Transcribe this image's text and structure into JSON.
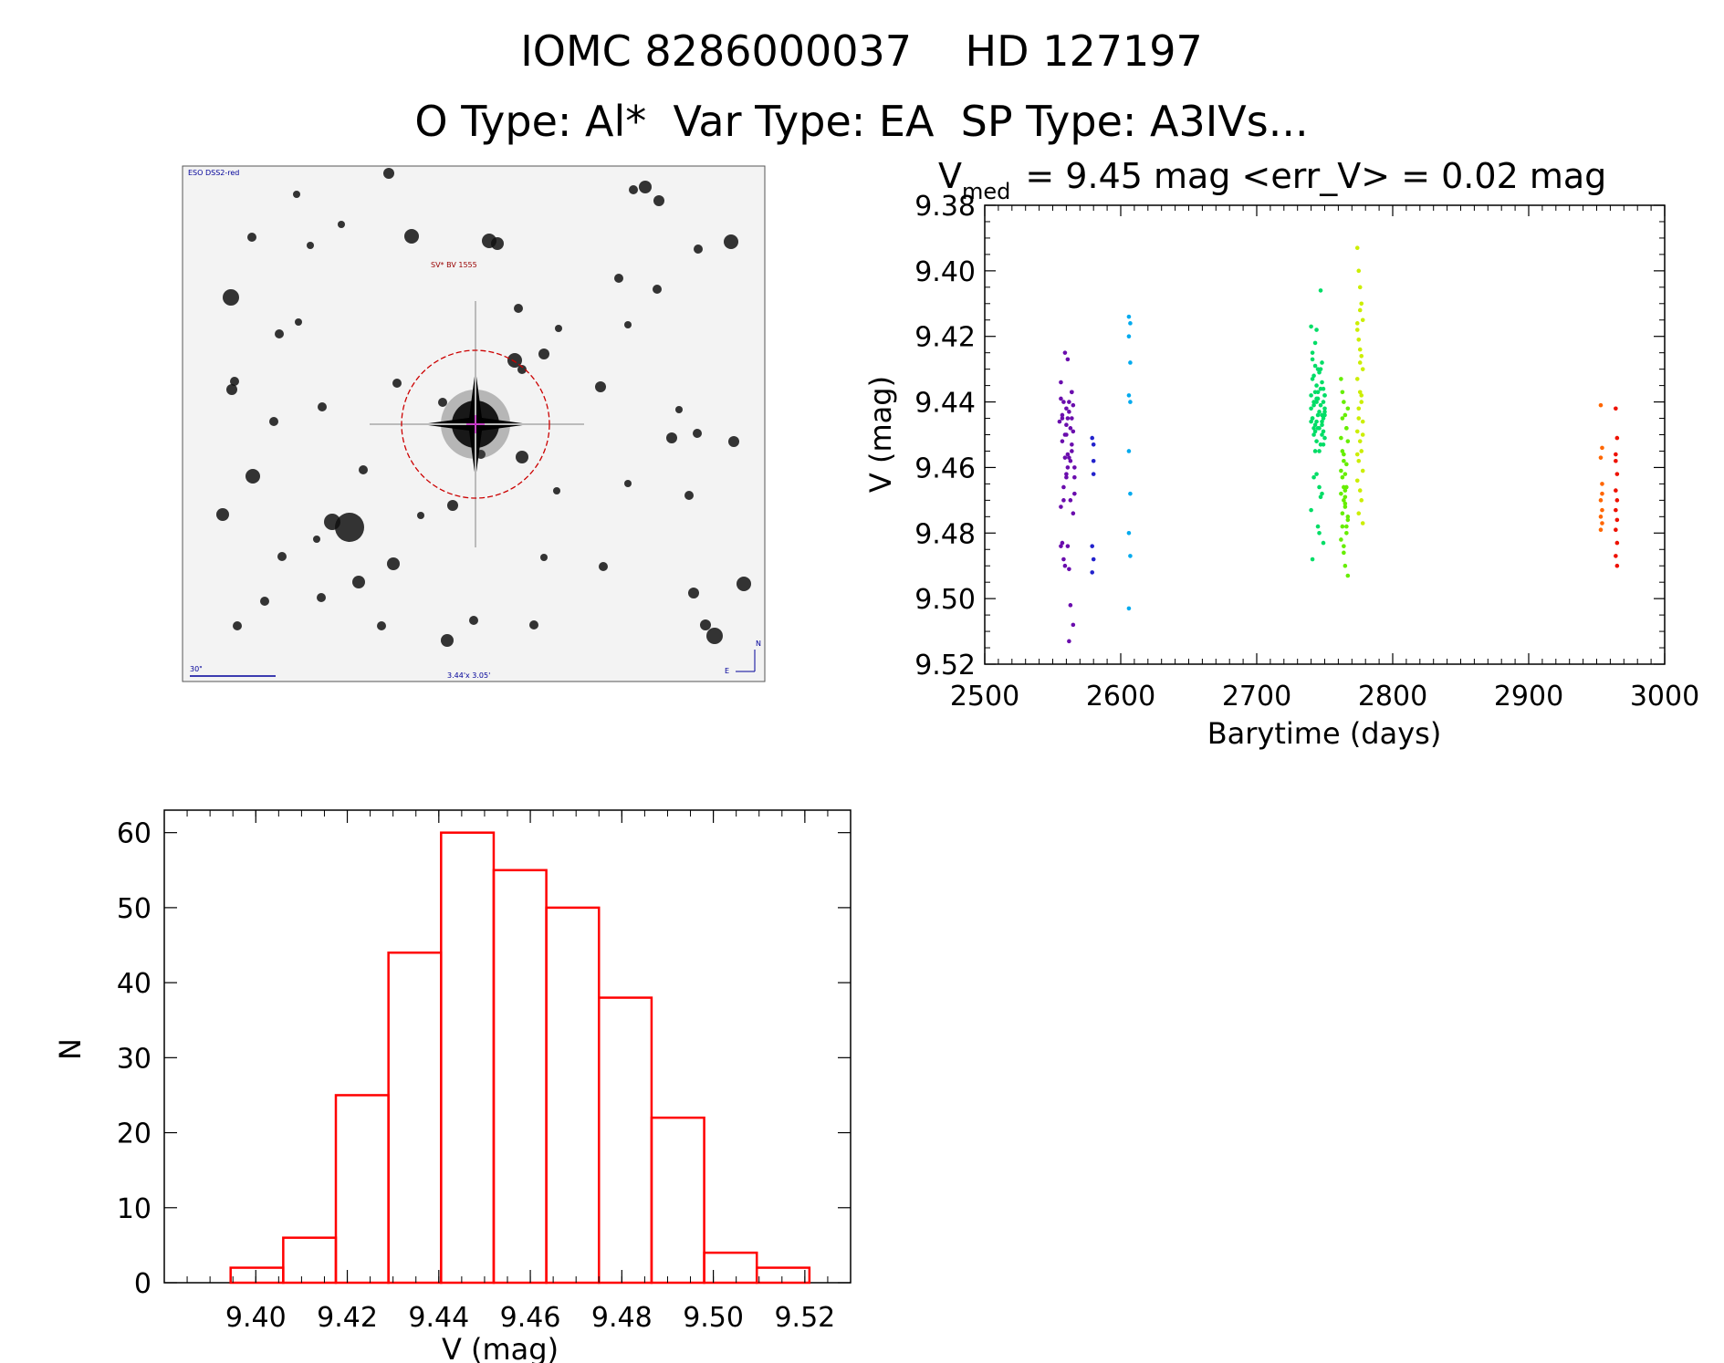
{
  "header": {
    "title_line1": "IOMC 8286000037    HD 127197",
    "title_line2": "O Type: Al*  Var Type: EA  SP Type: A3IVs..."
  },
  "thumbnail": {
    "survey_label": "ESO DSS2-red",
    "target_label": "SV* BV 1555",
    "scale_label": "30\"",
    "size_label": "3.44'x 3.05'",
    "north_label": "N",
    "east_label": "E"
  },
  "lightcurve": {
    "title_prefix": "V",
    "title_subscript": "med",
    "title_rest": "= 9.45 mag <err_V> = 0.02 mag",
    "xlabel": "Barytime (days)",
    "ylabel": "V (mag)",
    "xticks": [
      "2500",
      "2600",
      "2700",
      "2800",
      "2900",
      "3000"
    ],
    "yticks": [
      "9.38",
      "9.40",
      "9.42",
      "9.44",
      "9.46",
      "9.48",
      "9.50",
      "9.52"
    ]
  },
  "histogram": {
    "xlabel": "V (mag)",
    "ylabel": "N",
    "xticks": [
      "9.40",
      "9.42",
      "9.44",
      "9.46",
      "9.48",
      "9.50",
      "9.52"
    ],
    "yticks": [
      "0",
      "10",
      "20",
      "30",
      "40",
      "50",
      "60"
    ]
  },
  "colors": {
    "histogram_bars": "#ff0000",
    "axes": "#000000",
    "thumb_circle": "#cc0000",
    "thumb_labels": "#000099"
  },
  "chart_data": [
    {
      "type": "scatter",
      "title": "V_med = 9.45 mag <err_V> = 0.02 mag",
      "xlabel": "Barytime (days)",
      "ylabel": "V (mag)",
      "xlim": [
        2500,
        3000
      ],
      "ylim": [
        9.52,
        9.38
      ],
      "y_inverted": true,
      "series": [
        {
          "color": "#6a0dad",
          "x": [
            2555,
            2556,
            2557,
            2558,
            2559,
            2560,
            2561,
            2562,
            2563,
            2564,
            2565,
            2566,
            2556,
            2557,
            2558,
            2560,
            2561,
            2563,
            2564,
            2565,
            2556,
            2558,
            2559,
            2561,
            2562,
            2564,
            2566,
            2557,
            2559,
            2560,
            2562,
            2563,
            2565,
            2566,
            2558,
            2561,
            2564,
            2556,
            2560,
            2562,
            2565,
            2559,
            2563,
            2557,
            2561,
            2564,
            2560,
            2562
          ],
          "y": [
            9.446,
            9.434,
            9.452,
            9.44,
            9.425,
            9.463,
            9.456,
            9.443,
            9.47,
            9.437,
            9.449,
            9.46,
            9.472,
            9.483,
            9.488,
            9.447,
            9.427,
            9.458,
            9.455,
            9.441,
            9.439,
            9.466,
            9.45,
            9.484,
            9.491,
            9.445,
            9.463,
            9.444,
            9.49,
            9.45,
            9.457,
            9.502,
            9.508,
            9.468,
            9.47,
            9.445,
            9.437,
            9.484,
            9.462,
            9.44,
            9.474,
            9.457,
            9.448,
            9.445,
            9.46,
            9.453,
            9.442,
            9.513
          ]
        },
        {
          "color": "#2222cc",
          "x": [
            2579,
            2580,
            2580,
            2579,
            2580,
            2579,
            2580
          ],
          "y": [
            9.451,
            9.458,
            9.462,
            9.484,
            9.488,
            9.492,
            9.453
          ]
        },
        {
          "color": "#00aaee",
          "x": [
            2606,
            2607,
            2606,
            2607,
            2606,
            2607,
            2606,
            2607,
            2606,
            2607,
            2606
          ],
          "y": [
            9.414,
            9.416,
            9.42,
            9.428,
            9.438,
            9.44,
            9.455,
            9.468,
            9.48,
            9.487,
            9.503
          ]
        },
        {
          "color": "#00dd66",
          "x": [
            2740,
            2741,
            2742,
            2743,
            2744,
            2745,
            2746,
            2747,
            2748,
            2749,
            2750,
            2741,
            2742,
            2744,
            2745,
            2747,
            2748,
            2750,
            2740,
            2743,
            2746,
            2749,
            2741,
            2744,
            2747,
            2750,
            2742,
            2745,
            2748,
            2743,
            2746,
            2749,
            2740,
            2744,
            2748,
            2741,
            2745,
            2749,
            2742,
            2746,
            2750,
            2743,
            2747,
            2740,
            2744,
            2748,
            2745,
            2749,
            2741,
            2746,
            2747,
            2743,
            2742,
            2750,
            2744,
            2748,
            2740,
            2745,
            2749,
            2741,
            2746,
            2743,
            2747,
            2742,
            2750,
            2744,
            2748
          ],
          "y": [
            9.417,
            9.425,
            9.432,
            9.437,
            9.44,
            9.444,
            9.448,
            9.406,
            9.428,
            9.436,
            9.442,
            9.445,
            9.45,
            9.418,
            9.43,
            9.453,
            9.434,
            9.438,
            9.446,
            9.422,
            9.455,
            9.44,
            9.433,
            9.446,
            9.441,
            9.451,
            9.44,
            9.437,
            9.444,
            9.429,
            9.443,
            9.449,
            9.438,
            9.452,
            9.447,
            9.427,
            9.439,
            9.445,
            9.463,
            9.466,
            9.438,
            9.455,
            9.469,
            9.473,
            9.462,
            9.468,
            9.478,
            9.483,
            9.488,
            9.48,
            9.43,
            9.447,
            9.441,
            9.444,
            9.435,
            9.45,
            9.442,
            9.448,
            9.453,
            9.445,
            9.431,
            9.449,
            9.436,
            9.448,
            9.443,
            9.439,
            9.446
          ]
        },
        {
          "color": "#66ee00",
          "x": [
            2762,
            2763,
            2764,
            2765,
            2766,
            2767,
            2763,
            2764,
            2765,
            2766,
            2762,
            2764,
            2765,
            2767,
            2763,
            2766,
            2762,
            2764,
            2765,
            2767,
            2763,
            2766,
            2764,
            2765,
            2762,
            2767,
            2763,
            2766,
            2764,
            2765,
            2763,
            2766,
            2764,
            2762,
            2765,
            2767
          ],
          "y": [
            9.433,
            9.437,
            9.44,
            9.444,
            9.448,
            9.452,
            9.455,
            9.458,
            9.462,
            9.466,
            9.468,
            9.47,
            9.472,
            9.475,
            9.478,
            9.48,
            9.482,
            9.486,
            9.49,
            9.493,
            9.463,
            9.459,
            9.466,
            9.469,
            9.451,
            9.442,
            9.474,
            9.478,
            9.484,
            9.471,
            9.445,
            9.448,
            9.456,
            9.461,
            9.467,
            9.476
          ]
        },
        {
          "color": "#ccee00",
          "x": [
            2774,
            2775,
            2776,
            2777,
            2778,
            2774,
            2775,
            2776,
            2777,
            2778,
            2774,
            2776,
            2777,
            2775,
            2778,
            2774,
            2776,
            2777,
            2775,
            2778,
            2774,
            2776,
            2777,
            2775,
            2778,
            2774,
            2776,
            2777,
            2775,
            2778,
            2774,
            2776
          ],
          "y": [
            9.393,
            9.4,
            9.405,
            9.41,
            9.415,
            9.418,
            9.421,
            9.424,
            9.426,
            9.43,
            9.433,
            9.437,
            9.44,
            9.442,
            9.446,
            9.449,
            9.452,
            9.455,
            9.458,
            9.461,
            9.464,
            9.467,
            9.47,
            9.474,
            9.477,
            9.416,
            9.428,
            9.438,
            9.445,
            9.45,
            9.456,
            9.412
          ]
        },
        {
          "color": "#ff6600",
          "x": [
            2953,
            2954,
            2953,
            2954,
            2953,
            2954,
            2953,
            2954,
            2953,
            2954
          ],
          "y": [
            9.441,
            9.454,
            9.457,
            9.465,
            9.47,
            9.473,
            9.475,
            9.477,
            9.479,
            9.468
          ]
        },
        {
          "color": "#ee1100",
          "x": [
            2964,
            2965,
            2964,
            2965,
            2964,
            2965,
            2964,
            2965,
            2964,
            2965,
            2964,
            2965,
            2964
          ],
          "y": [
            9.442,
            9.451,
            9.456,
            9.462,
            9.467,
            9.47,
            9.473,
            9.476,
            9.479,
            9.483,
            9.487,
            9.49,
            9.458
          ]
        }
      ]
    },
    {
      "type": "bar",
      "subtype": "histogram",
      "xlabel": "V (mag)",
      "ylabel": "N",
      "xlim": [
        9.38,
        9.53
      ],
      "ylim": [
        0,
        63
      ],
      "bin_width": 0.0115,
      "bin_edges": [
        9.3945,
        9.406,
        9.4175,
        9.429,
        9.4405,
        9.452,
        9.4635,
        9.475,
        9.4865,
        9.498,
        9.5095,
        9.521
      ],
      "values": [
        2,
        6,
        25,
        44,
        60,
        55,
        50,
        38,
        22,
        4,
        2
      ]
    }
  ]
}
